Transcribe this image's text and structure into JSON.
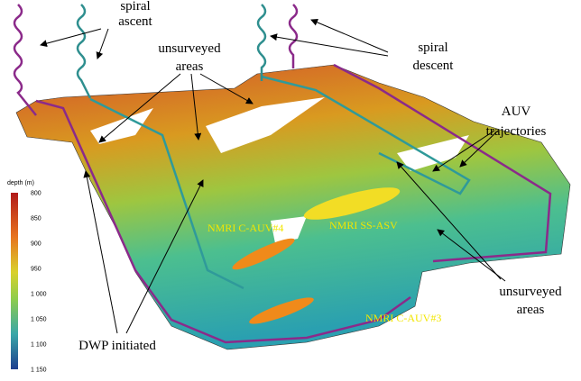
{
  "annotations": [
    {
      "lines": [
        "spiral",
        "ascent"
      ]
    },
    {
      "lines": [
        "spiral",
        "descent"
      ]
    },
    {
      "lines": [
        "unsurveyed",
        "areas"
      ]
    },
    {
      "lines": [
        "AUV",
        "trajectories"
      ]
    },
    {
      "lines": [
        "unsurveyed",
        "areas"
      ]
    },
    {
      "lines": [
        "DWP initiated"
      ]
    }
  ],
  "vehicle_labels": [
    "NMRI C-AUV#4",
    "NMRI SS-ASV",
    "NMRI C-AUV#3"
  ],
  "colorbar": {
    "title": "depth (m)",
    "ticks": [
      "800",
      "850",
      "900",
      "950",
      "1 000",
      "1 050",
      "1 100",
      "1 150"
    ]
  }
}
